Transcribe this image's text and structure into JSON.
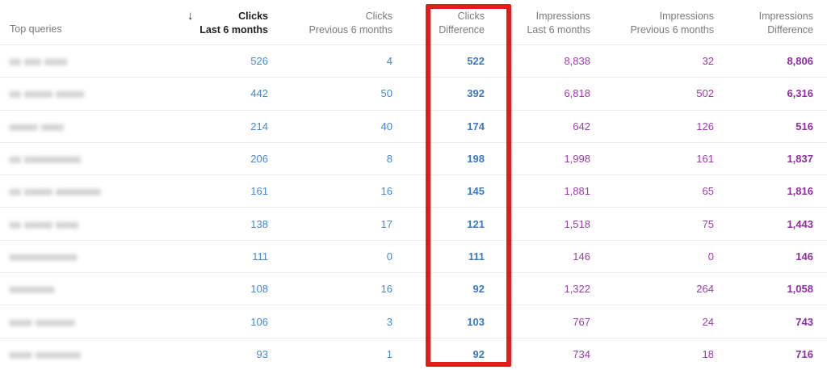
{
  "table": {
    "query_header": "Top queries",
    "sort_icon": "↓",
    "columns": [
      {
        "line1": "Clicks",
        "line2": "Last 6 months",
        "sorted": true
      },
      {
        "line1": "Clicks",
        "line2": "Previous 6 months",
        "sorted": false
      },
      {
        "line1": "Clicks",
        "line2": "Difference",
        "sorted": false
      },
      {
        "line1": "Impressions",
        "line2": "Last 6 months",
        "sorted": false
      },
      {
        "line1": "Impressions",
        "line2": "Previous 6 months",
        "sorted": false
      },
      {
        "line1": "Impressions",
        "line2": "Difference",
        "sorted": false
      }
    ],
    "rows": [
      {
        "query": "xx xxx xxxx",
        "clicks_last": "526",
        "clicks_prev": "4",
        "clicks_diff": "522",
        "impressions_last": "8,838",
        "impressions_prev": "32",
        "impressions_diff": "8,806"
      },
      {
        "query": "xx xxxxx xxxxx",
        "clicks_last": "442",
        "clicks_prev": "50",
        "clicks_diff": "392",
        "impressions_last": "6,818",
        "impressions_prev": "502",
        "impressions_diff": "6,316"
      },
      {
        "query": "xxxxx xxxx",
        "clicks_last": "214",
        "clicks_prev": "40",
        "clicks_diff": "174",
        "impressions_last": "642",
        "impressions_prev": "126",
        "impressions_diff": "516"
      },
      {
        "query": "xx xxxxxxxxxx",
        "clicks_last": "206",
        "clicks_prev": "8",
        "clicks_diff": "198",
        "impressions_last": "1,998",
        "impressions_prev": "161",
        "impressions_diff": "1,837"
      },
      {
        "query": "xx xxxxx xxxxxxxx",
        "clicks_last": "161",
        "clicks_prev": "16",
        "clicks_diff": "145",
        "impressions_last": "1,881",
        "impressions_prev": "65",
        "impressions_diff": "1,816"
      },
      {
        "query": "xx xxxxx xxxx",
        "clicks_last": "138",
        "clicks_prev": "17",
        "clicks_diff": "121",
        "impressions_last": "1,518",
        "impressions_prev": "75",
        "impressions_diff": "1,443"
      },
      {
        "query": "xxxxxxxxxxxx",
        "clicks_last": "111",
        "clicks_prev": "0",
        "clicks_diff": "111",
        "impressions_last": "146",
        "impressions_prev": "0",
        "impressions_diff": "146"
      },
      {
        "query": "xxxxxxxx",
        "clicks_last": "108",
        "clicks_prev": "16",
        "clicks_diff": "92",
        "impressions_last": "1,322",
        "impressions_prev": "264",
        "impressions_diff": "1,058"
      },
      {
        "query": "xxxx xxxxxxx",
        "clicks_last": "106",
        "clicks_prev": "3",
        "clicks_diff": "103",
        "impressions_last": "767",
        "impressions_prev": "24",
        "impressions_diff": "743"
      },
      {
        "query": "xxxx xxxxxxxx",
        "clicks_last": "93",
        "clicks_prev": "1",
        "clicks_diff": "92",
        "impressions_last": "734",
        "impressions_prev": "18",
        "impressions_diff": "716"
      }
    ]
  },
  "colors": {
    "clicks": "#4688cf",
    "clicks_difference": "#3c79c4",
    "impressions": "#9c3bad",
    "impressions_difference": "#8e2ea0",
    "highlight_box": "#e31b1b",
    "header_text": "#7a7a7a",
    "sorted_header_text": "#202124",
    "row_divider": "#ebebeb"
  }
}
